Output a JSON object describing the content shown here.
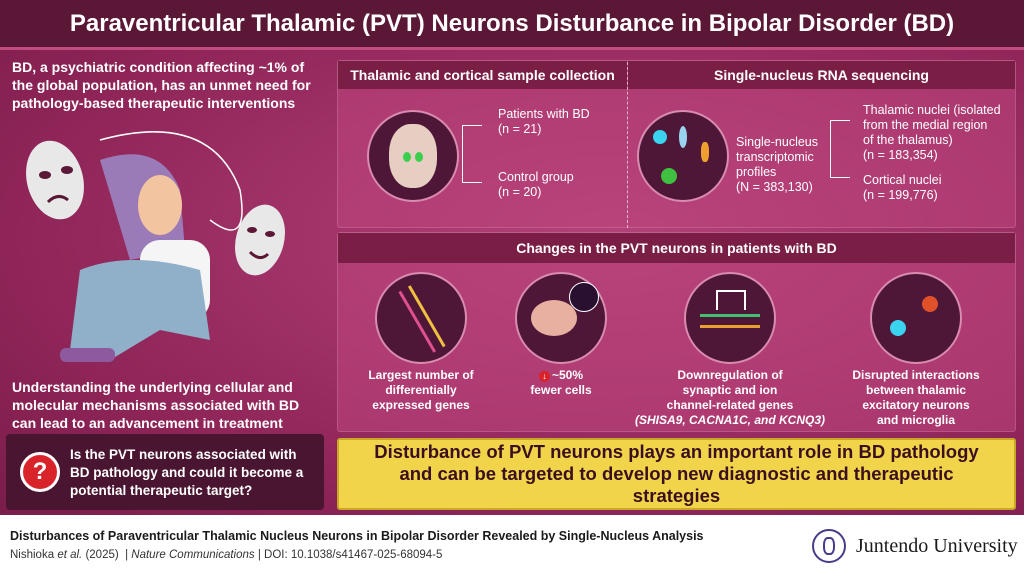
{
  "title": "Paraventricular Thalamic (PVT) Neurons Disturbance in Bipolar Disorder (BD)",
  "left": {
    "intro": "BD, a psychiatric condition affecting ~1% of the global population, has an unmet need for pathology-based therapeutic interventions",
    "understanding": "Understanding the underlying cellular and molecular mechanisms associated with BD can lead to an advancement in treatment",
    "question": "Is the PVT neurons associated with BD pathology and could it become a potential therapeutic target?"
  },
  "sample": {
    "header": "Thalamic and cortical sample collection",
    "patients": "Patients with BD",
    "patients_n": "(n = 21)",
    "control": "Control group",
    "control_n": "(n = 20)"
  },
  "sequencing": {
    "header": "Single-nucleus RNA sequencing",
    "profiles": [
      "Single-nucleus",
      "transcriptomic",
      "profiles",
      "(N = 383,130)"
    ],
    "thalamic": [
      "Thalamic nuclei (isolated",
      "from the medial region",
      "of the thalamus)",
      "(n = 183,354)"
    ],
    "cortical": [
      "Cortical nuclei",
      "(n = 199,776)"
    ]
  },
  "changes": {
    "header": "Changes in the PVT neurons in patients with BD",
    "items": [
      {
        "l1": "Largest number of",
        "l2": "differentially",
        "l3": "expressed genes"
      },
      {
        "l1": "~50%",
        "l2": "fewer cells",
        "l3": ""
      },
      {
        "l1": "Downregulation of",
        "l2": "synaptic and ion",
        "l3": "channel-related genes",
        "l4": "(SHISA9, CACNA1C, and KCNQ3)"
      },
      {
        "l1": "Disrupted interactions",
        "l2": "between thalamic",
        "l3": "excitatory neurons",
        "l4": "and microglia"
      }
    ]
  },
  "conclusion": "Disturbance of PVT neurons plays an important role in BD pathology and can be targeted to develop new diagnostic and therapeutic strategies",
  "footer": {
    "paper_title": "Disturbances of Paraventricular Thalamic Nucleus Neurons in Bipolar Disorder Revealed by Single-Nucleus Analysis",
    "authors": "Nishioka",
    "etal": "et al.",
    "year": "(2025)",
    "journal": "Nature Communications",
    "doi": "DOI: 10.1038/s41467-025-68094-5",
    "institution": "Juntendo University"
  },
  "colors": {
    "title_bg": "#5b1736",
    "main_bg": "#8e2457",
    "header_bg": "#7b1e45",
    "conclusion_bg": "#f2d44b"
  }
}
